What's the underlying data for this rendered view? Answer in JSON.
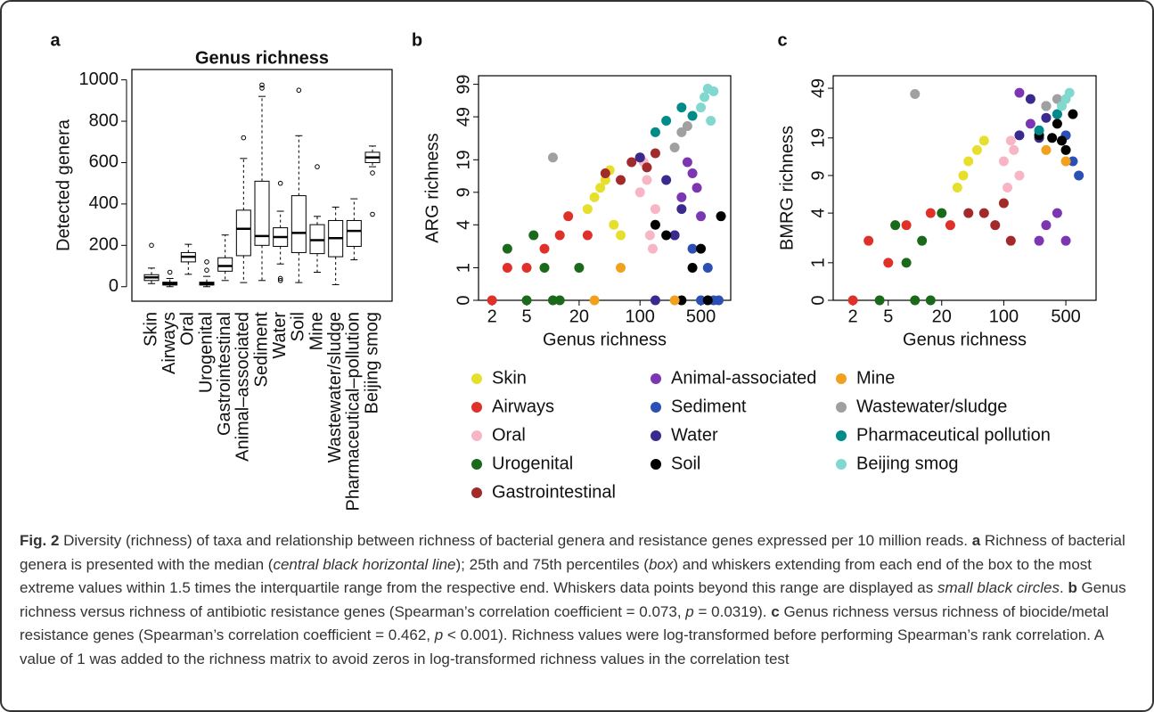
{
  "chart_data": [
    {
      "type": "box",
      "panel_label": "a",
      "title": "Genus richness",
      "y_label": "Detected genera",
      "categories": [
        "Skin",
        "Airways",
        "Oral",
        "Urogenital",
        "Gastrointestinal",
        "Animal–associated",
        "Sediment",
        "Water",
        "Soil",
        "Mine",
        "Wastewater/sludge",
        "Pharmaceutical–pollution",
        "Beijing smog"
      ],
      "min": [
        15,
        0,
        60,
        0,
        30,
        20,
        30,
        110,
        20,
        70,
        10,
        130,
        580
      ],
      "q1": [
        30,
        8,
        120,
        8,
        75,
        150,
        200,
        195,
        165,
        160,
        145,
        195,
        600
      ],
      "median": [
        45,
        15,
        145,
        15,
        100,
        280,
        245,
        240,
        260,
        225,
        235,
        270,
        625
      ],
      "q3": [
        58,
        22,
        165,
        22,
        140,
        370,
        510,
        285,
        440,
        300,
        320,
        320,
        650
      ],
      "max": [
        90,
        40,
        205,
        50,
        250,
        620,
        920,
        365,
        730,
        340,
        385,
        425,
        680
      ],
      "outliers": [
        [
          200
        ],
        [
          70
        ],
        [],
        [
          80,
          120
        ],
        [],
        [
          720
        ],
        [
          960,
          975
        ],
        [
          500,
          30,
          40
        ],
        [
          950
        ],
        [
          580
        ],
        [],
        [],
        [
          550,
          350
        ]
      ],
      "ylim": [
        -70,
        1050
      ],
      "yticks": [
        0,
        200,
        400,
        600,
        800,
        1000
      ]
    },
    {
      "type": "scatter",
      "panel_label": "b",
      "x_label": "Genus richness",
      "y_label": "ARG richness",
      "xscale": "log",
      "yscale": "log1p",
      "xlim": [
        1.4,
        1100
      ],
      "ylim": [
        0,
        119
      ],
      "xticks": [
        2,
        5,
        20,
        100,
        500
      ],
      "yticks": [
        0,
        1,
        4,
        9,
        19,
        49,
        99
      ],
      "series": [
        {
          "x": [
            30,
            40,
            25,
            50,
            35,
            60,
            45
          ],
          "values": [
            8,
            12,
            6,
            4,
            10,
            3,
            15
          ]
        },
        {
          "x": [
            2,
            3,
            5,
            8,
            15,
            25,
            12
          ],
          "values": [
            0,
            1,
            1,
            2,
            5,
            3,
            3
          ]
        },
        {
          "x": [
            100,
            120,
            150,
            130,
            110,
            140
          ],
          "values": [
            9,
            12,
            6,
            3,
            18,
            2
          ]
        },
        {
          "x": [
            5,
            8,
            3,
            12,
            20,
            6,
            10
          ],
          "values": [
            0,
            1,
            2,
            0,
            1,
            3,
            0
          ]
        },
        {
          "x": [
            60,
            80,
            100,
            150,
            40,
            120
          ],
          "values": [
            12,
            18,
            20,
            22,
            14,
            16
          ]
        },
        {
          "x": [
            300,
            400,
            500,
            350,
            250,
            450
          ],
          "values": [
            8,
            14,
            5,
            18,
            3,
            10
          ]
        },
        {
          "x": [
            500,
            700,
            600,
            400,
            800
          ],
          "values": [
            0,
            0,
            1,
            2,
            0
          ]
        },
        {
          "x": [
            200,
            300,
            150,
            250,
            100
          ],
          "values": [
            12,
            6,
            0,
            3,
            20
          ]
        },
        {
          "x": [
            300,
            400,
            200,
            500,
            600,
            150,
            850
          ],
          "values": [
            0,
            1,
            3,
            2,
            0,
            4,
            5
          ]
        },
        {
          "x": [
            30,
            60,
            250
          ],
          "values": [
            0,
            1,
            0
          ]
        },
        {
          "x": [
            10,
            300,
            250,
            350
          ],
          "values": [
            20,
            35,
            25,
            40
          ]
        },
        {
          "x": [
            200,
            300,
            150,
            400
          ],
          "values": [
            45,
            60,
            35,
            50
          ]
        },
        {
          "x": [
            500,
            600,
            650,
            550,
            700
          ],
          "values": [
            60,
            90,
            45,
            75,
            85
          ]
        }
      ]
    },
    {
      "type": "scatter",
      "panel_label": "c",
      "x_label": "Genus richness",
      "y_label": "BMRG richness",
      "xscale": "log",
      "yscale": "log1p",
      "xlim": [
        1.2,
        1095
      ],
      "ylim": [
        0,
        62
      ],
      "xticks": [
        2,
        5,
        20,
        100,
        500
      ],
      "yticks": [
        0,
        1,
        4,
        9,
        19,
        49
      ],
      "series": [
        {
          "x": [
            40,
            50,
            35,
            60,
            30
          ],
          "values": [
            12,
            15,
            9,
            18,
            7
          ]
        },
        {
          "x": [
            3,
            5,
            8,
            15,
            25,
            2
          ],
          "values": [
            2,
            1,
            3,
            4,
            3,
            0
          ]
        },
        {
          "x": [
            100,
            130,
            150,
            120,
            110
          ],
          "values": [
            12,
            15,
            9,
            18,
            7
          ]
        },
        {
          "x": [
            4,
            8,
            10,
            12,
            6,
            15,
            20
          ],
          "values": [
            0,
            1,
            0,
            2,
            3,
            0,
            4
          ]
        },
        {
          "x": [
            40,
            80,
            100,
            60,
            120
          ],
          "values": [
            4,
            3,
            5,
            4,
            2
          ]
        },
        {
          "x": [
            200,
            300,
            400,
            250,
            500,
            150
          ],
          "values": [
            25,
            3,
            4,
            2,
            2,
            45
          ]
        },
        {
          "x": [
            400,
            600,
            700,
            500,
            300
          ],
          "values": [
            30,
            12,
            9,
            20,
            35
          ]
        },
        {
          "x": [
            200,
            250,
            300,
            150
          ],
          "values": [
            40,
            19,
            28,
            20
          ]
        },
        {
          "x": [
            250,
            350,
            400,
            500,
            600,
            450
          ],
          "values": [
            20,
            19,
            25,
            15,
            30,
            18
          ]
        },
        {
          "x": [
            300,
            500
          ],
          "values": [
            15,
            12
          ]
        },
        {
          "x": [
            10,
            300,
            400
          ],
          "values": [
            44,
            35,
            40
          ]
        },
        {
          "x": [
            250,
            400
          ],
          "values": [
            22,
            30
          ]
        },
        {
          "x": [
            500,
            550,
            450
          ],
          "values": [
            40,
            45,
            35
          ]
        }
      ]
    }
  ],
  "legend": [
    {
      "name": "Skin",
      "color": "#e6df2b"
    },
    {
      "name": "Airways",
      "color": "#e0302a"
    },
    {
      "name": "Oral",
      "color": "#f7b5c6"
    },
    {
      "name": "Urogenital",
      "color": "#1b6a1b"
    },
    {
      "name": "Gastrointestinal",
      "color": "#a32a2a"
    },
    {
      "name": "Animal-associated",
      "color": "#7d36b2"
    },
    {
      "name": "Sediment",
      "color": "#2b4fb2"
    },
    {
      "name": "Water",
      "color": "#3b2a8e"
    },
    {
      "name": "Soil",
      "color": "#000000"
    },
    {
      "name": "Mine",
      "color": "#f0a21f"
    },
    {
      "name": "Wastewater/sludge",
      "color": "#a0a0a0"
    },
    {
      "name": "Pharmaceutical pollution",
      "color": "#008b8b"
    },
    {
      "name": "Beijing smog",
      "color": "#80d8cf"
    }
  ],
  "caption": {
    "runs": [
      {
        "text": "Fig. 2",
        "style": "bold"
      },
      {
        "text": " Diversity (richness) of taxa and relationship between richness of bacterial genera and resistance genes expressed per 10 million reads. "
      },
      {
        "text": "a",
        "style": "bold"
      },
      {
        "text": " Richness of bacterial genera is presented with the median ("
      },
      {
        "text": "central black horizontal line",
        "style": "italic"
      },
      {
        "text": "); 25th and 75th percentiles ("
      },
      {
        "text": "box",
        "style": "italic"
      },
      {
        "text": ") and whiskers extending from each end of the box to the most extreme values within 1.5 times the interquartile range from the respective end. Whiskers data points beyond this range are displayed as "
      },
      {
        "text": "small black circles",
        "style": "italic"
      },
      {
        "text": ". "
      },
      {
        "text": "b",
        "style": "bold"
      },
      {
        "text": " Genus richness versus richness of antibiotic resistance genes (Spearman’s correlation coefficient = 0.073, "
      },
      {
        "text": "p",
        "style": "italic"
      },
      {
        "text": " = 0.0319). "
      },
      {
        "text": "c",
        "style": "bold"
      },
      {
        "text": " Genus richness versus richness of biocide/metal resistance genes (Spearman’s correlation coefficient = 0.462, "
      },
      {
        "text": "p",
        "style": "italic"
      },
      {
        "text": " < 0.001). Richness values were log-transformed before performing Spearman’s rank correlation. A value of 1 was added to the richness matrix to avoid zeros in log-transformed richness values in the correlation test"
      }
    ]
  }
}
